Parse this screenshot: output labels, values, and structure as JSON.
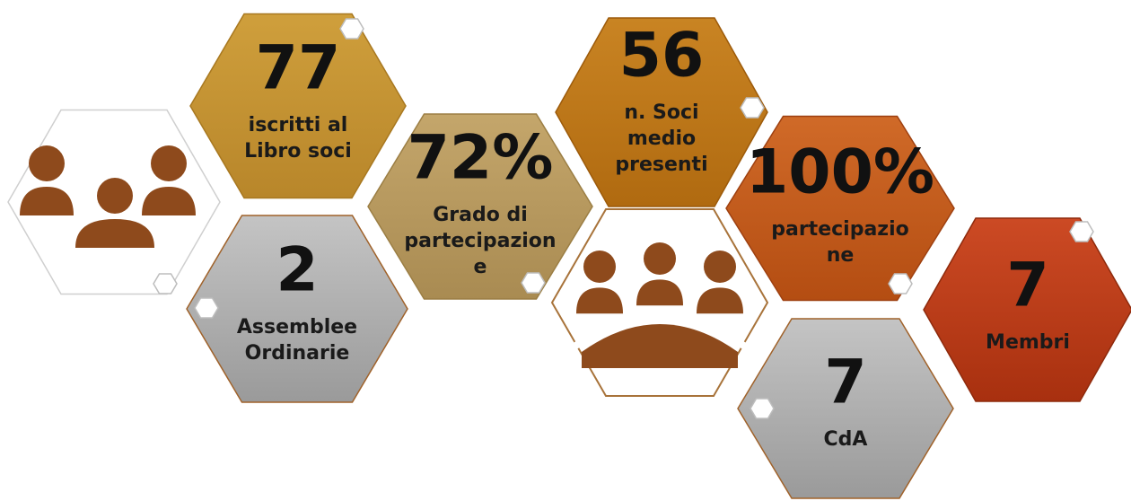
{
  "tiles": [
    {
      "value": "77",
      "label_lines": [
        "iscritti al",
        "Libro soci"
      ]
    },
    {
      "value": "2",
      "label_lines": [
        "Assemblee",
        "Ordinarie"
      ]
    },
    {
      "value": "72%",
      "label_lines": [
        "Grado di",
        "partecipazion",
        "e"
      ]
    },
    {
      "value": "56",
      "label_lines": [
        "n. Soci",
        "medio",
        "presenti"
      ]
    },
    {
      "value": "100%",
      "label_lines": [
        "partecipazio",
        "ne"
      ]
    },
    {
      "value": "7",
      "label_lines": [
        "CdA"
      ]
    },
    {
      "value": "7",
      "label_lines": [
        "Membri"
      ]
    }
  ]
}
